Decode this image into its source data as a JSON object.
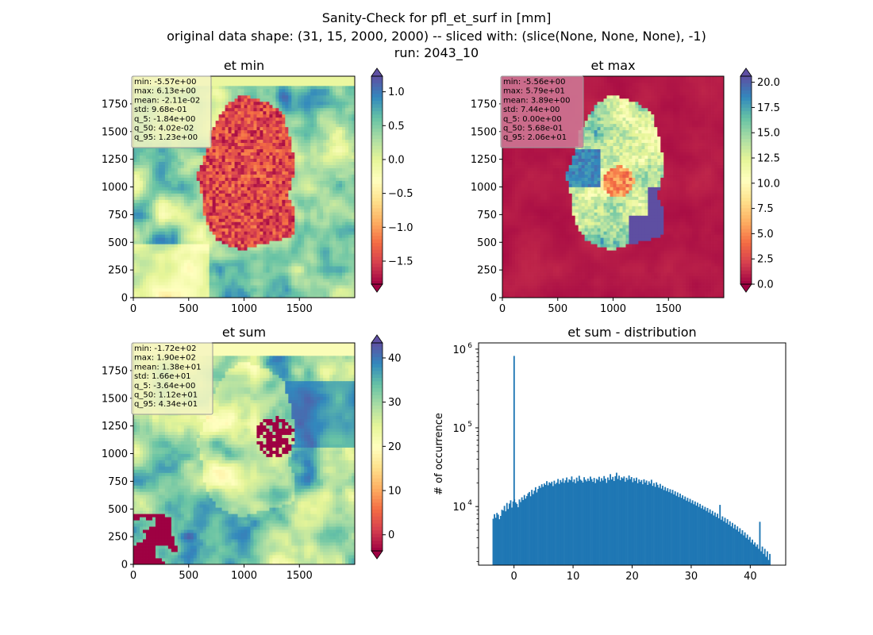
{
  "figure": {
    "suptitle_lines": [
      "Sanity-Check for pfl_et_surf in [mm]",
      "original data shape: (31, 15, 2000, 2000) -- sliced with: (slice(None, None, None), -1)",
      "run: 2043_10"
    ]
  },
  "chart_data": [
    {
      "type": "heatmap",
      "title": "et min",
      "colormap": "Spectral",
      "x_ticks": [
        0,
        500,
        1000,
        1500
      ],
      "y_ticks": [
        0,
        250,
        500,
        750,
        1000,
        1250,
        1500,
        1750
      ],
      "xlim": [
        0,
        2000
      ],
      "ylim": [
        0,
        2000
      ],
      "colorbar": {
        "ticks": [
          -1.5,
          -1.0,
          -0.5,
          0.0,
          0.5,
          1.0
        ],
        "tick_labels": [
          "−1.5",
          "−1.0",
          "−0.5",
          "0.0",
          "0.5",
          "1.0"
        ],
        "range": [
          -1.84,
          1.23
        ],
        "extend": "both"
      },
      "stats_box": [
        "min: -5.57e+00",
        "max: 6.13e+00",
        "mean: -2.11e-02",
        "std: 9.68e-01",
        "q_5: -1.84e+00",
        "q_50: 4.02e-02",
        "q_95: 1.23e+00"
      ],
      "stats_box_color": "#f4f4c2"
    },
    {
      "type": "heatmap",
      "title": "et max",
      "colormap": "Spectral",
      "x_ticks": [
        0,
        500,
        1000,
        1500
      ],
      "y_ticks": [
        0,
        250,
        500,
        750,
        1000,
        1250,
        1500,
        1750
      ],
      "xlim": [
        0,
        2000
      ],
      "ylim": [
        0,
        2000
      ],
      "colorbar": {
        "ticks": [
          0.0,
          2.5,
          5.0,
          7.5,
          10.0,
          12.5,
          15.0,
          17.5,
          20.0
        ],
        "tick_labels": [
          "0.0",
          "2.5",
          "5.0",
          "7.5",
          "10.0",
          "12.5",
          "15.0",
          "17.5",
          "20.0"
        ],
        "range": [
          0.0,
          20.6
        ],
        "extend": "both"
      },
      "stats_box": [
        "min: -5.56e+00",
        "max: 5.79e+01",
        "mean: 3.89e+00",
        "std: 7.44e+00",
        "q_5: 0.00e+00",
        "q_50: 5.68e-01",
        "q_95: 2.06e+01"
      ],
      "stats_box_color": "#cf7a98"
    },
    {
      "type": "heatmap",
      "title": "et sum",
      "colormap": "Spectral",
      "x_ticks": [
        0,
        500,
        1000,
        1500
      ],
      "y_ticks": [
        0,
        250,
        500,
        750,
        1000,
        1250,
        1500,
        1750
      ],
      "xlim": [
        0,
        2000
      ],
      "ylim": [
        0,
        2000
      ],
      "colorbar": {
        "ticks": [
          0,
          10,
          20,
          30,
          40
        ],
        "tick_labels": [
          "0",
          "10",
          "20",
          "30",
          "40"
        ],
        "range": [
          -3.64,
          43.4
        ],
        "extend": "both"
      },
      "stats_box": [
        "min: -1.72e+02",
        "max: 1.90e+02",
        "mean: 1.38e+01",
        "std: 1.66e+01",
        "q_5: -3.64e+00",
        "q_50: 1.12e+01",
        "q_95: 4.34e+01"
      ],
      "stats_box_color": "#f4f4c2"
    },
    {
      "type": "bar",
      "subtype": "histogram",
      "title": "et sum - distribution",
      "xlabel": "",
      "ylabel": "# of occurrence",
      "y_scale": "log",
      "xlim": [
        -6,
        46
      ],
      "ylim": [
        1800,
        1200000
      ],
      "x_ticks": [
        0,
        10,
        20,
        30,
        40
      ],
      "y_ticks": [
        10000,
        100000,
        1000000
      ],
      "y_tick_labels": [
        [
          "10",
          "4"
        ],
        [
          "10",
          "5"
        ],
        [
          "10",
          "6"
        ]
      ],
      "bar_color": "#1f77b4",
      "bin_range": [
        -3.64,
        43.4
      ],
      "spike": {
        "x": 0.0,
        "count": 820000
      },
      "counts": [
        7000,
        8000,
        7200,
        8300,
        7900,
        6900,
        7600,
        9100,
        8900,
        10200,
        8700,
        11100,
        9300,
        10900,
        12000,
        9700,
        11600,
        12400,
        11300,
        10800,
        9800,
        12300,
        11400,
        13100,
        12100,
        14000,
        12600,
        13600,
        14700,
        15300,
        13500,
        16300,
        14400,
        15900,
        17600,
        15100,
        16700,
        18300,
        17300,
        19200,
        17800,
        19600,
        18800,
        21000,
        18600,
        20300,
        19700,
        20700,
        18200,
        21300,
        19300,
        20100,
        22400,
        19400,
        21700,
        20400,
        22800,
        20000,
        21500,
        23400,
        20300,
        22200,
        21600,
        24100,
        20500,
        22100,
        19800,
        23300,
        21000,
        24600,
        22000,
        21300,
        20200,
        23600,
        21900,
        20900,
        22700,
        21200,
        24000,
        22300,
        20600,
        23100,
        19900,
        22500,
        21800,
        23900,
        20800,
        22900,
        21400,
        24400,
        22600,
        20000,
        23400,
        21700,
        25800,
        22100,
        23800,
        21100,
        24300,
        26900,
        22400,
        24700,
        21600,
        23500,
        22800,
        24100,
        20700,
        23200,
        21900,
        24800,
        22300,
        23700,
        20400,
        22900,
        21200,
        23300,
        19800,
        22100,
        20600,
        21700,
        19200,
        22200,
        20200,
        21400,
        18800,
        20900,
        19600,
        21900,
        18300,
        19900,
        17800,
        20300,
        18900,
        17400,
        19400,
        16900,
        18400,
        16200,
        17700,
        15800,
        17100,
        15300,
        16600,
        14800,
        16300,
        14300,
        15600,
        13700,
        15100,
        13200,
        14600,
        12900,
        13900,
        12400,
        13400,
        11900,
        12900,
        11500,
        12500,
        11100,
        12000,
        10700,
        11600,
        10300,
        11200,
        9900,
        10800,
        9500,
        10300,
        9200,
        9900,
        8800,
        9600,
        8400,
        9200,
        8100,
        8800,
        7700,
        8400,
        7400,
        8100,
        7100,
        10500,
        6800,
        7500,
        6500,
        7200,
        6200,
        6900,
        5900,
        6500,
        5600,
        6200,
        5300,
        5900,
        5100,
        5600,
        4800,
        5300,
        4500,
        5000,
        4300,
        4700,
        4000,
        4400,
        3800,
        4100,
        3500,
        3800,
        3300,
        3500,
        3100,
        3300,
        2900,
        6400,
        2700,
        3100,
        2500,
        2900,
        2300,
        2700,
        2100,
        2500
      ]
    }
  ]
}
